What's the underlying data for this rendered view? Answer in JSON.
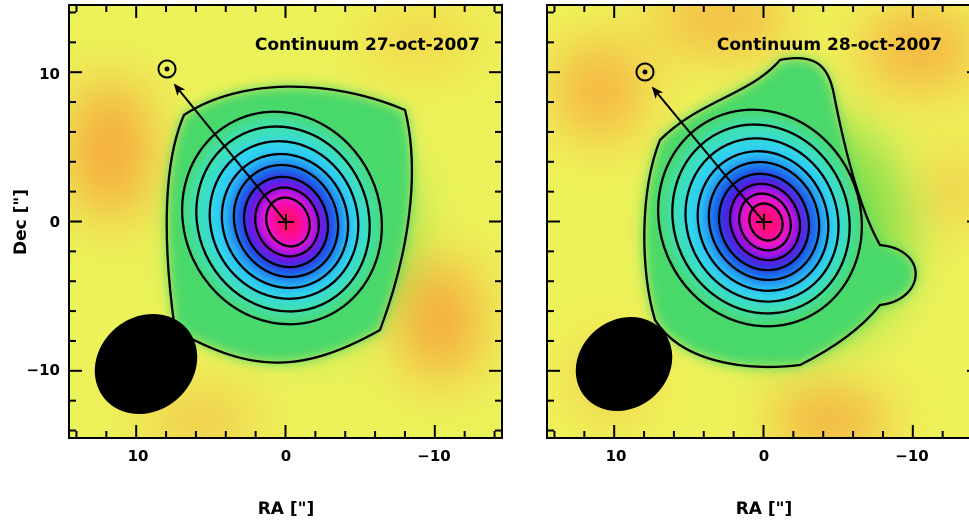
{
  "chart_data": [
    {
      "type": "heatmap",
      "title": "Continuum 27-oct-2007",
      "xlabel": "RA [\"]",
      "ylabel": "Dec [\"]",
      "xlim": [
        14.5,
        -14.5
      ],
      "ylim": [
        -14.5,
        14.5
      ],
      "xticks": [
        10,
        0,
        -10
      ],
      "yticks": [
        10,
        0,
        -10
      ],
      "xtick_labels": [
        "10",
        "0",
        "−10"
      ],
      "ytick_labels": [
        "10",
        "0",
        "−10"
      ],
      "source_peak": [
        0,
        0
      ],
      "sun_symbol": [
        8,
        10.3
      ],
      "beam": {
        "center": [
          10,
          -10.2
        ],
        "major_axis": 7.2,
        "minor_axis": 5.6,
        "position_angle_deg": 55
      },
      "contour_levels": 9,
      "colormap": [
        "#ffff46",
        "#3cdc3c",
        "#32d2ff",
        "#0000e6",
        "#ff00e6",
        "#ff0066"
      ]
    },
    {
      "type": "heatmap",
      "title": "Continuum 28-oct-2007",
      "xlabel": "RA [\"]",
      "ylabel": "",
      "xlim": [
        14.5,
        -14.5
      ],
      "ylim": [
        -14.5,
        14.5
      ],
      "xticks": [
        10,
        0,
        -10
      ],
      "yticks": [
        10,
        0,
        -10
      ],
      "xtick_labels": [
        "10",
        "0",
        "−10"
      ],
      "source_peak": [
        0,
        0
      ],
      "sun_symbol": [
        8,
        10.1
      ],
      "beam": {
        "center": [
          10,
          -10.2
        ],
        "major_axis": 6.8,
        "minor_axis": 5.2,
        "position_angle_deg": 55
      },
      "contour_levels": 10,
      "colormap": [
        "#ffff46",
        "#3cdc3c",
        "#32d2ff",
        "#0000e6",
        "#ff00e6",
        "#ff0066"
      ]
    }
  ]
}
